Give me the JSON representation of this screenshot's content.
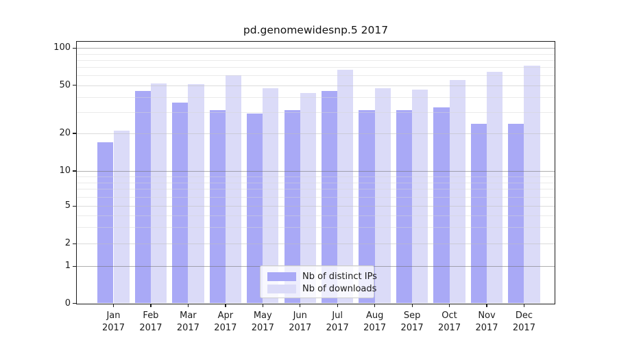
{
  "chart_data": {
    "type": "bar",
    "title": "pd.genomewidesnp.5 2017",
    "x_months": [
      "Jan",
      "Feb",
      "Mar",
      "Apr",
      "May",
      "Jun",
      "Jul",
      "Aug",
      "Sep",
      "Oct",
      "Nov",
      "Dec"
    ],
    "x_year": "2017",
    "series": [
      {
        "name": "Nb of distinct IPs",
        "color": "#a9a9f6",
        "values": [
          17,
          45,
          36,
          31,
          29,
          31,
          45,
          31,
          31,
          33,
          24,
          24
        ]
      },
      {
        "name": "Nb of downloads",
        "color": "#dbdbf8",
        "values": [
          21,
          52,
          51,
          60,
          47,
          43,
          67,
          47,
          46,
          55,
          64,
          72
        ]
      }
    ],
    "y_tick_labels": [
      "0",
      "1",
      "2",
      "5",
      "10",
      "20",
      "50",
      "100"
    ],
    "y_scale": "symlog",
    "ylim": [
      0,
      113
    ],
    "grid": true,
    "legend_position": "lower center",
    "axis_color": "#1a1a1a",
    "background": "#ffffff"
  }
}
